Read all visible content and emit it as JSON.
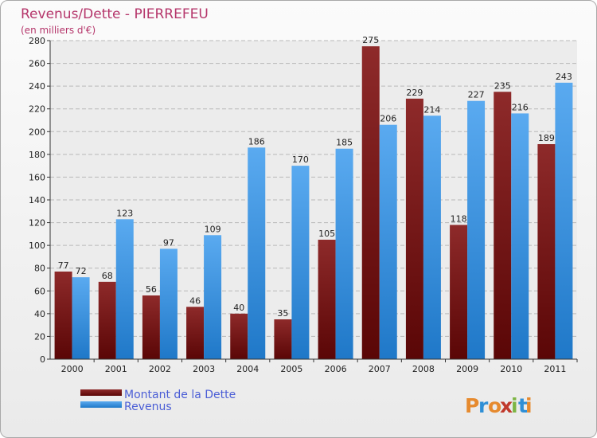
{
  "chart_data": {
    "type": "bar",
    "title": "Revenus/Dette - PIERREFEU",
    "subtitle": "(en milliers d'€)",
    "categories": [
      "2000",
      "2001",
      "2002",
      "2003",
      "2004",
      "2005",
      "2006",
      "2007",
      "2008",
      "2009",
      "2010",
      "2011"
    ],
    "series": [
      {
        "name": "Montant de la Dette",
        "color": "#8b1c1c",
        "values": [
          77,
          68,
          56,
          46,
          40,
          35,
          105,
          275,
          229,
          118,
          235,
          189
        ]
      },
      {
        "name": "Revenus",
        "color": "#3d9ae0",
        "values": [
          72,
          123,
          97,
          109,
          186,
          170,
          185,
          206,
          214,
          227,
          216,
          243
        ]
      }
    ],
    "ylim": [
      0,
      280
    ],
    "ytick_step": 20,
    "grid": true,
    "legend_position": "bottom-left"
  },
  "branding": {
    "logo_text": "Proxiti",
    "logo_colors": [
      "#e68a2e",
      "#2f8fd6",
      "#e68a2e",
      "#c0392b",
      "#7db544",
      "#2f8fd6",
      "#e68a2e"
    ]
  }
}
